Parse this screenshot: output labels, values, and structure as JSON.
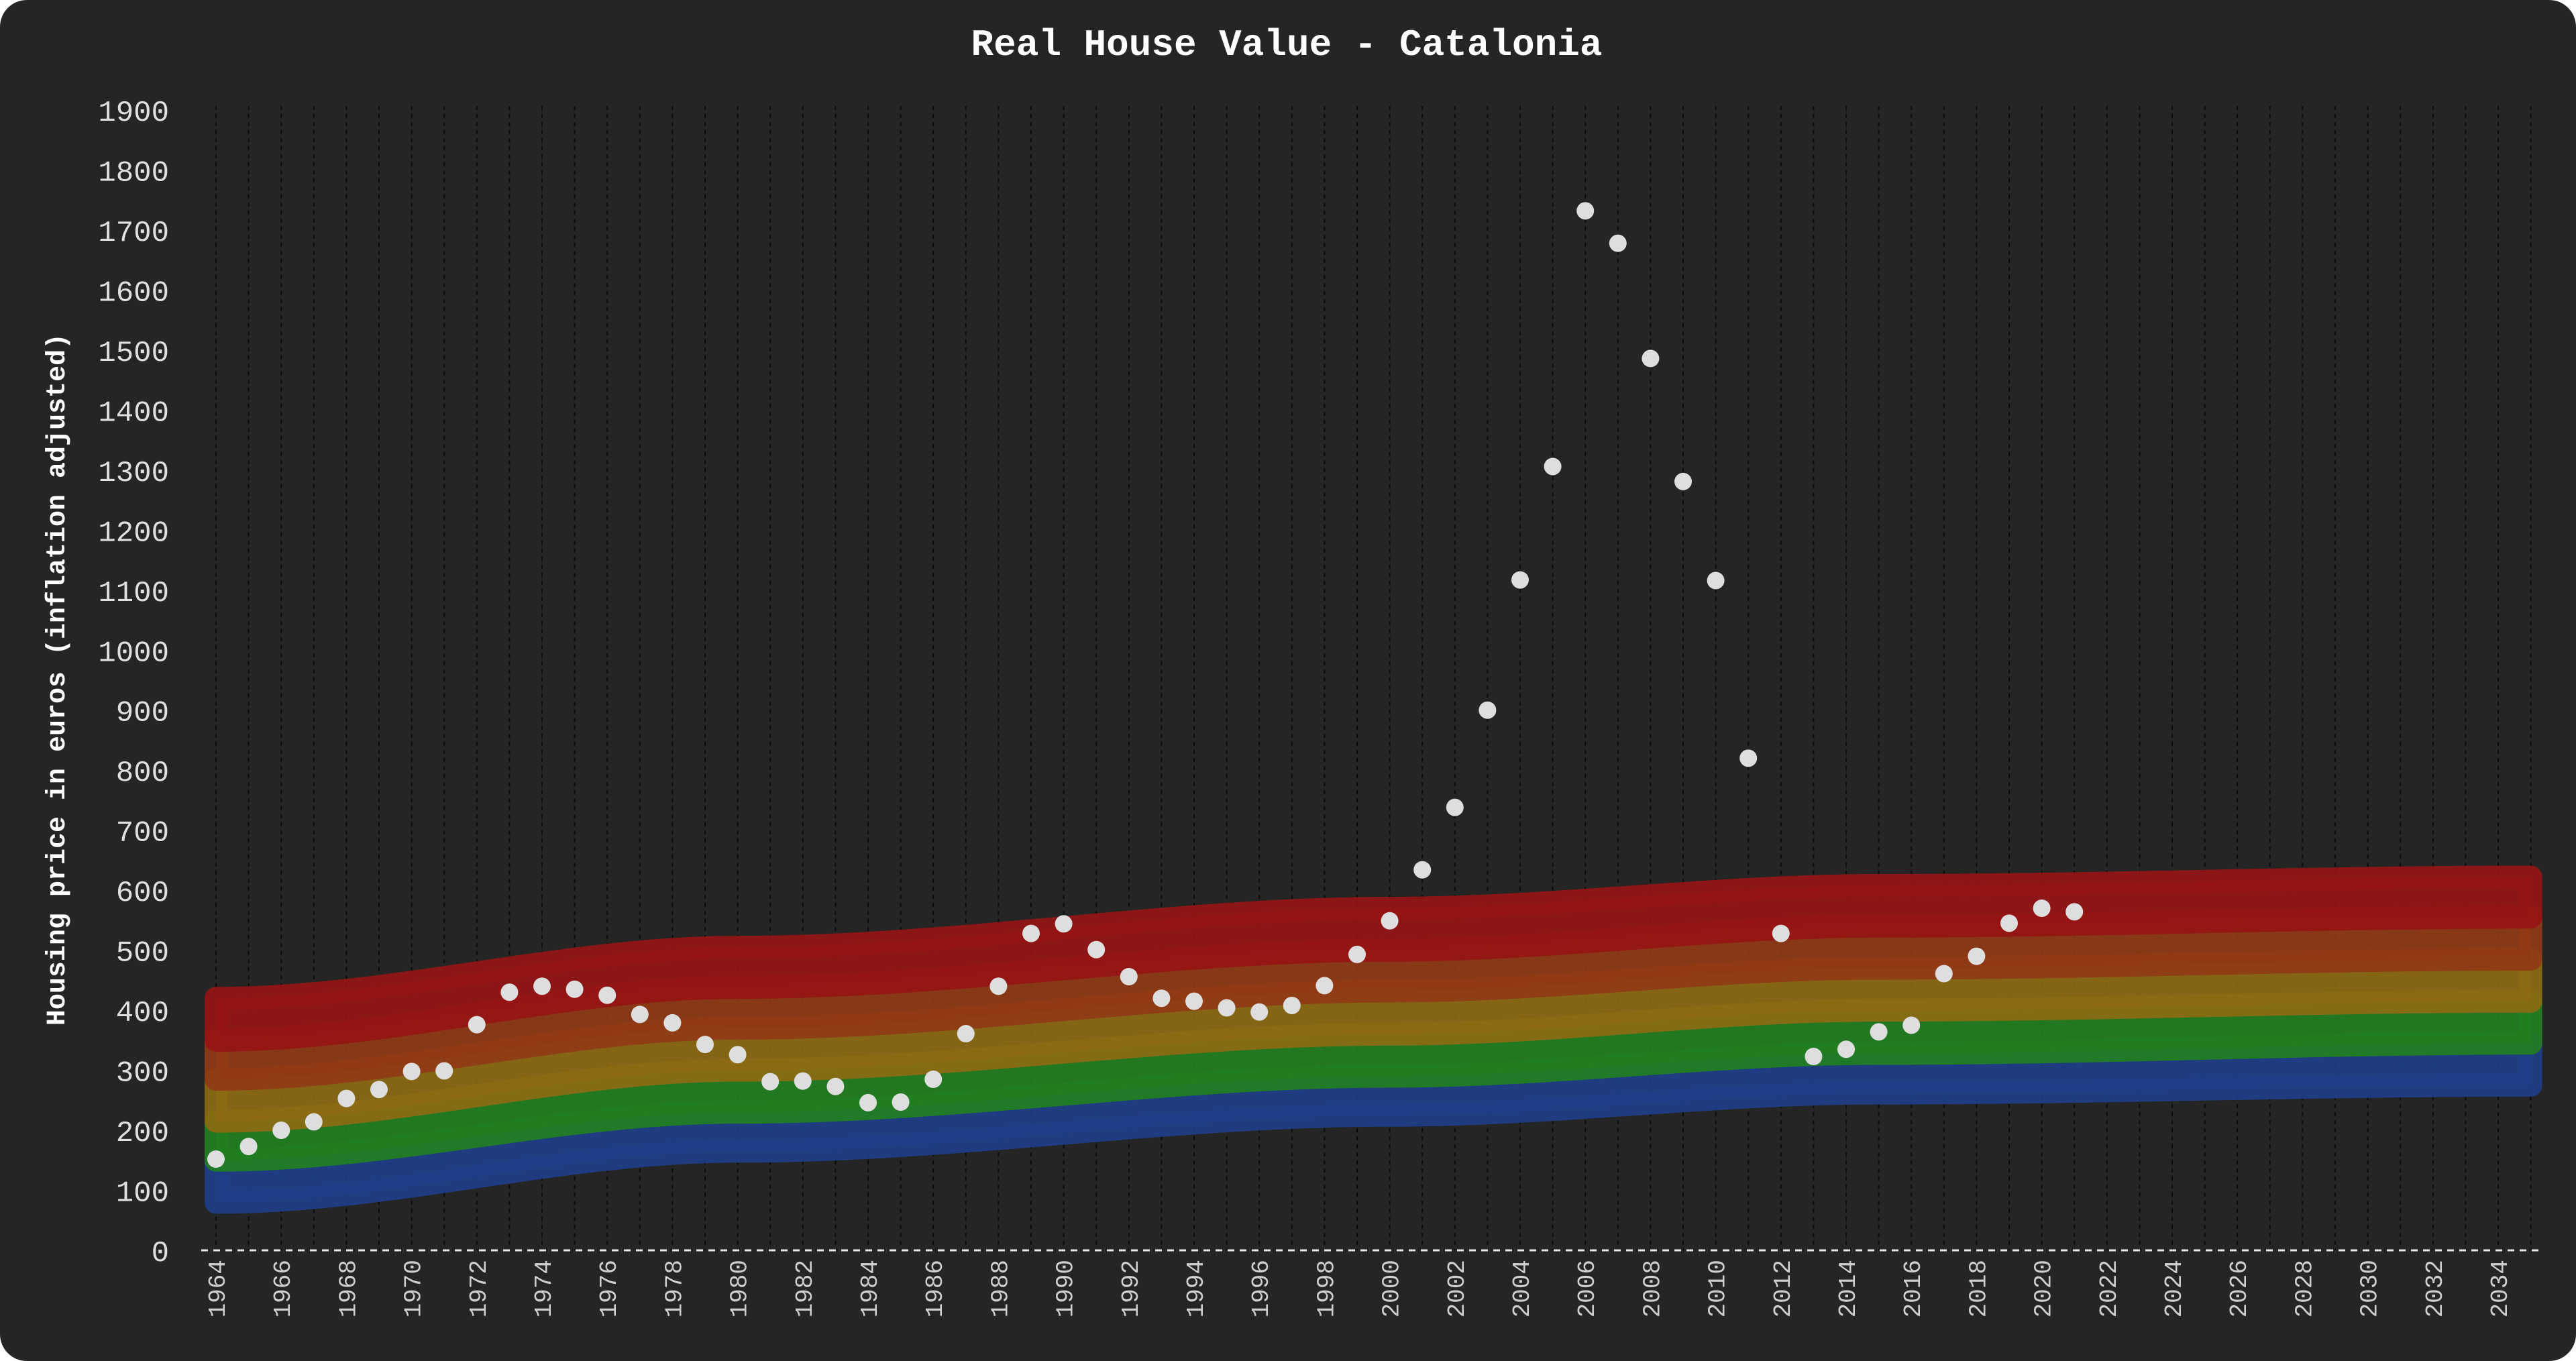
{
  "chart_data": {
    "type": "scatter",
    "title": "Real House Value - Catalonia",
    "ylabel": "Housing price in euros (inflation adjusted)",
    "xlabel": "",
    "ylim": [
      0,
      1900
    ],
    "xlim": [
      1964,
      2035
    ],
    "y_ticks": [
      "0",
      "100",
      "200",
      "300",
      "400",
      "500",
      "600",
      "700",
      "800",
      "900",
      "1000",
      "1100",
      "1200",
      "1300",
      "1400",
      "1500",
      "1600",
      "1700",
      "1800",
      "1900"
    ],
    "x_ticks": [
      "1964",
      "1966",
      "1968",
      "1970",
      "1972",
      "1974",
      "1976",
      "1978",
      "1980",
      "1982",
      "1984",
      "1986",
      "1988",
      "1990",
      "1992",
      "1994",
      "1996",
      "1998",
      "2000",
      "2002",
      "2004",
      "2006",
      "2008",
      "2010",
      "2012",
      "2014",
      "2016",
      "2018",
      "2020",
      "2022",
      "2024",
      "2026",
      "2028",
      "2030",
      "2032",
      "2034"
    ],
    "grid": "vertical dashed lines at every year",
    "series": [
      {
        "points": [
          [
            1964,
            152
          ],
          [
            1965,
            173
          ],
          [
            1966,
            200
          ],
          [
            1967,
            214
          ],
          [
            1968,
            253
          ],
          [
            1969,
            268
          ],
          [
            1970,
            298
          ],
          [
            1971,
            299
          ],
          [
            1972,
            376
          ],
          [
            1973,
            430
          ],
          [
            1974,
            440
          ],
          [
            1975,
            435
          ],
          [
            1976,
            425
          ],
          [
            1977,
            393
          ],
          [
            1978,
            379
          ],
          [
            1979,
            343
          ],
          [
            1980,
            326
          ],
          [
            1981,
            281
          ],
          [
            1982,
            282
          ],
          [
            1983,
            273
          ],
          [
            1984,
            246
          ],
          [
            1985,
            247
          ],
          [
            1986,
            285
          ],
          [
            1987,
            361
          ],
          [
            1988,
            440
          ],
          [
            1989,
            528
          ],
          [
            1990,
            544
          ],
          [
            1991,
            501
          ],
          [
            1992,
            456
          ],
          [
            1993,
            420
          ],
          [
            1994,
            415
          ],
          [
            1995,
            404
          ],
          [
            1996,
            397
          ],
          [
            1997,
            408
          ],
          [
            1998,
            441
          ],
          [
            1999,
            493
          ],
          [
            2000,
            549
          ],
          [
            2001,
            634
          ],
          [
            2002,
            738
          ],
          [
            2003,
            900
          ],
          [
            2004,
            1117
          ],
          [
            2005,
            1306
          ],
          [
            2006,
            1732
          ],
          [
            2007,
            1678
          ],
          [
            2008,
            1486
          ],
          [
            2009,
            1281
          ],
          [
            2010,
            1116
          ],
          [
            2011,
            820
          ],
          [
            2012,
            528
          ],
          [
            2013,
            323
          ],
          [
            2014,
            335
          ],
          [
            2015,
            364
          ],
          [
            2016,
            375
          ],
          [
            2017,
            461
          ],
          [
            2018,
            490
          ],
          [
            2019,
            545
          ],
          [
            2020,
            570
          ],
          [
            2021,
            564
          ]
        ]
      }
    ],
    "bands": {
      "x_start": 1964,
      "x_end": 2035,
      "colors": [
        "#1e3e88",
        "#227f1f",
        "#8c6a14",
        "#8f3916",
        "#951515"
      ],
      "edges": [
        [
          [
            1964,
            80
          ],
          [
            1980,
            165
          ],
          [
            2000,
            225
          ],
          [
            2015,
            262
          ],
          [
            2035,
            275
          ]
        ],
        [
          [
            1964,
            150
          ],
          [
            1980,
            230
          ],
          [
            2000,
            290
          ],
          [
            2015,
            328
          ],
          [
            2035,
            345
          ]
        ],
        [
          [
            1964,
            215
          ],
          [
            1980,
            300
          ],
          [
            2000,
            360
          ],
          [
            2015,
            400
          ],
          [
            2035,
            415
          ]
        ],
        [
          [
            1964,
            285
          ],
          [
            1980,
            370
          ],
          [
            2000,
            432
          ],
          [
            2015,
            470
          ],
          [
            2035,
            485
          ]
        ],
        [
          [
            1964,
            350
          ],
          [
            1980,
            438
          ],
          [
            2000,
            500
          ],
          [
            2015,
            540
          ],
          [
            2035,
            555
          ]
        ],
        [
          [
            1964,
            420
          ],
          [
            1980,
            505
          ],
          [
            2000,
            570
          ],
          [
            2015,
            608
          ],
          [
            2035,
            622
          ]
        ]
      ]
    }
  }
}
